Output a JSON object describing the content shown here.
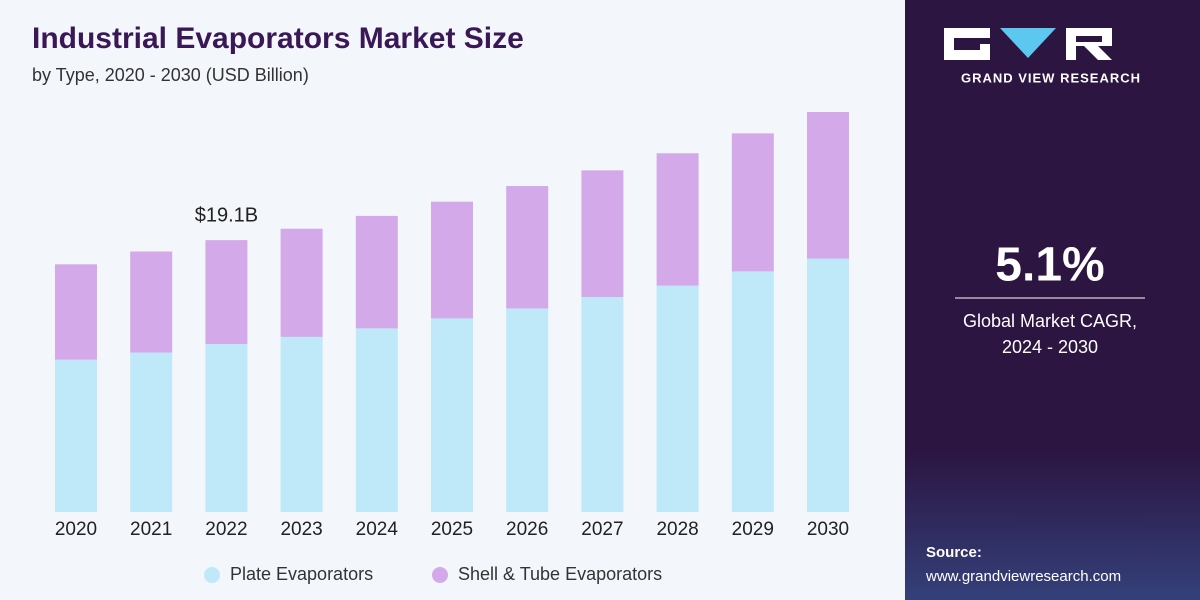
{
  "chart_data": {
    "type": "stacked-bar",
    "title": "Industrial Evaporators Market Size",
    "subtitle": "by Type, 2020 - 2030 (USD Billion)",
    "categories": [
      "2020",
      "2021",
      "2022",
      "2023",
      "2024",
      "2025",
      "2026",
      "2027",
      "2028",
      "2029",
      "2030"
    ],
    "series": [
      {
        "name": "Plate Evaporators",
        "color": "#bfe9f8",
        "values": [
          10.7,
          11.2,
          11.8,
          12.3,
          12.9,
          13.6,
          14.3,
          15.1,
          15.9,
          16.9,
          17.8
        ]
      },
      {
        "name": "Shell & Tube Evaporators",
        "color": "#d4a9e9",
        "values": [
          6.7,
          7.1,
          7.3,
          7.6,
          7.9,
          8.2,
          8.6,
          8.9,
          9.3,
          9.7,
          10.3
        ]
      }
    ],
    "annotation": "$19.1B"
  },
  "sidebar": {
    "brand": "GRAND VIEW RESEARCH",
    "cagr": "5.1%",
    "cagr_label_1": "Global Market CAGR,",
    "cagr_label_2": "2024 - 2030",
    "source_label": "Source:",
    "source_url": "www.grandviewresearch.com"
  }
}
